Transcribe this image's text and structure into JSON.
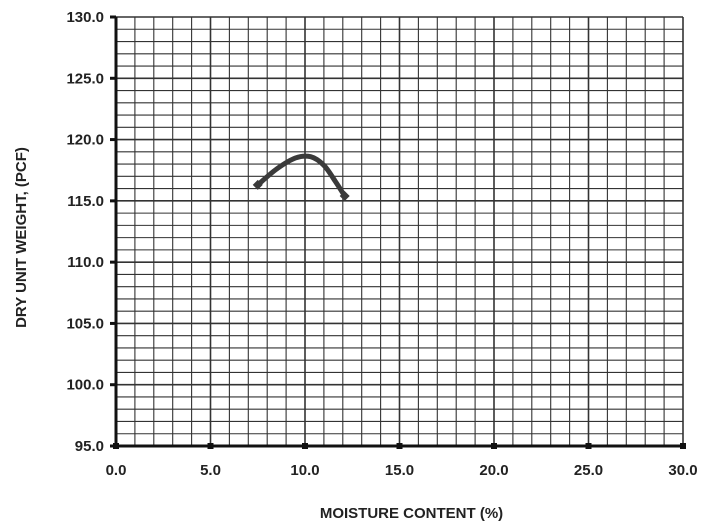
{
  "chart_data": {
    "type": "line",
    "title": "",
    "xlabel": "MOISTURE CONTENT (%)",
    "ylabel": "DRY UNIT WEIGHT, (PCF)",
    "xlim": [
      0,
      30
    ],
    "ylim": [
      95,
      130
    ],
    "x_tick_labels": [
      "0.0",
      "5.0",
      "10.0",
      "15.0",
      "20.0",
      "25.0",
      "30.0"
    ],
    "y_tick_labels": [
      "95.0",
      "100.0",
      "105.0",
      "110.0",
      "115.0",
      "120.0",
      "125.0",
      "130.0"
    ],
    "grid": true,
    "minor_grid_per_major_x": 5,
    "minor_grid_per_major_y": 5,
    "legend": "none",
    "series": [
      {
        "x": [
          7.5,
          8.5,
          9.5,
          10.3,
          11.0,
          11.6,
          12.1
        ],
        "y": [
          116.3,
          117.6,
          118.5,
          118.6,
          117.9,
          116.6,
          115.4
        ],
        "marker_x": [
          7.5,
          12.1
        ],
        "marker_y": [
          116.3,
          115.4
        ],
        "color": "#3a3a3a"
      }
    ],
    "colors": {
      "grid": "#333333",
      "axis": "#111111",
      "text": "#222222"
    }
  }
}
